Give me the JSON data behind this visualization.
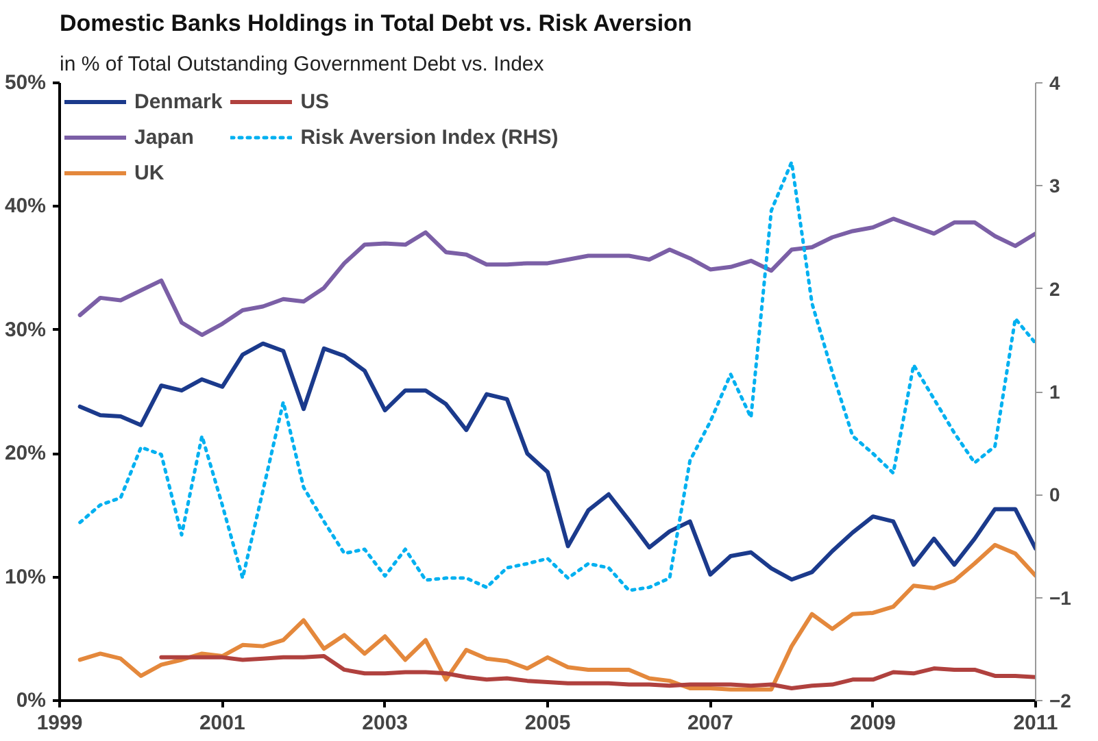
{
  "chart_data": {
    "type": "line",
    "title": "Domestic Banks Holdings in Total Debt vs. Risk Aversion",
    "subtitle": "in % of Total Outstanding Government Debt vs. Index",
    "x": [
      1999.25,
      1999.5,
      1999.75,
      2000.0,
      2000.25,
      2000.5,
      2000.75,
      2001.0,
      2001.25,
      2001.5,
      2001.75,
      2002.0,
      2002.25,
      2002.5,
      2002.75,
      2003.0,
      2003.25,
      2003.5,
      2003.75,
      2004.0,
      2004.25,
      2004.5,
      2004.75,
      2005.0,
      2005.25,
      2005.5,
      2005.75,
      2006.0,
      2006.25,
      2006.5,
      2006.75,
      2007.0,
      2007.25,
      2007.5,
      2007.75,
      2008.0,
      2008.25,
      2008.5,
      2008.75,
      2009.0,
      2009.25,
      2009.5,
      2009.75,
      2010.0,
      2010.25,
      2010.5,
      2010.75,
      2011.0
    ],
    "series": [
      {
        "name": "Denmark",
        "color": "#1b3a8c",
        "values": [
          23.8,
          23.1,
          23.0,
          22.3,
          25.5,
          25.1,
          26.0,
          25.4,
          28.0,
          28.9,
          28.3,
          23.6,
          28.5,
          27.9,
          26.7,
          23.5,
          25.1,
          25.1,
          24.0,
          21.9,
          24.8,
          24.4,
          20.0,
          18.5,
          12.5,
          15.4,
          16.7,
          14.6,
          12.4,
          13.7,
          14.5,
          10.2,
          11.7,
          12.0,
          10.7,
          9.8,
          10.4,
          12.1,
          13.6,
          14.9,
          14.5,
          11.0,
          13.1,
          11.0,
          13.1,
          15.5,
          15.5,
          12.3
        ]
      },
      {
        "name": "Japan",
        "color": "#7b5fa6",
        "values": [
          31.2,
          32.6,
          32.4,
          33.2,
          34.0,
          30.6,
          29.6,
          30.5,
          31.6,
          31.9,
          32.5,
          32.3,
          33.4,
          35.4,
          36.9,
          37.0,
          36.9,
          37.9,
          36.3,
          36.1,
          35.3,
          35.3,
          35.4,
          35.4,
          35.7,
          36.0,
          36.0,
          36.0,
          35.7,
          36.5,
          35.8,
          34.9,
          35.1,
          35.6,
          34.8,
          36.5,
          36.7,
          37.5,
          38.0,
          38.3,
          39.0,
          38.4,
          37.8,
          38.7,
          38.7,
          37.6,
          36.8,
          37.8
        ]
      },
      {
        "name": "UK",
        "color": "#e4883c",
        "values": [
          3.3,
          3.8,
          3.4,
          2.0,
          2.9,
          3.3,
          3.8,
          3.6,
          4.5,
          4.4,
          4.9,
          6.5,
          4.2,
          5.3,
          3.8,
          5.2,
          3.3,
          4.9,
          1.7,
          4.1,
          3.4,
          3.2,
          2.6,
          3.5,
          2.7,
          2.5,
          2.5,
          2.5,
          1.8,
          1.6,
          1.0,
          1.0,
          0.9,
          0.9,
          0.9,
          4.4,
          7.0,
          5.8,
          7.0,
          7.1,
          7.6,
          9.3,
          9.1,
          9.7,
          11.1,
          12.6,
          11.9,
          10.1
        ]
      },
      {
        "name": "US",
        "color": "#b0413e",
        "values": [
          null,
          null,
          null,
          null,
          3.5,
          3.5,
          3.5,
          3.5,
          3.3,
          3.4,
          3.5,
          3.5,
          3.6,
          2.5,
          2.2,
          2.2,
          2.3,
          2.3,
          2.2,
          1.9,
          1.7,
          1.8,
          1.6,
          1.5,
          1.4,
          1.4,
          1.4,
          1.3,
          1.3,
          1.2,
          1.3,
          1.3,
          1.3,
          1.2,
          1.3,
          1.0,
          1.2,
          1.3,
          1.7,
          1.7,
          2.3,
          2.2,
          2.6,
          2.5,
          2.5,
          2.0,
          2.0,
          1.9
        ]
      },
      {
        "name": "Risk Aversion Index (RHS)",
        "color": "#00b0f0",
        "axis": "y2",
        "line_style": "dotted",
        "values": [
          -0.27,
          -0.1,
          -0.03,
          0.46,
          0.39,
          -0.39,
          0.57,
          -0.1,
          -0.81,
          0.04,
          0.9,
          0.07,
          -0.26,
          -0.57,
          -0.53,
          -0.79,
          -0.53,
          -0.83,
          -0.81,
          -0.81,
          -0.9,
          -0.71,
          -0.67,
          -0.62,
          -0.81,
          -0.67,
          -0.71,
          -0.93,
          -0.9,
          -0.81,
          0.33,
          0.71,
          1.17,
          0.75,
          2.76,
          3.23,
          1.86,
          1.19,
          0.57,
          0.4,
          0.21,
          1.26,
          0.93,
          0.6,
          0.31,
          0.47,
          1.71,
          1.47
        ]
      }
    ],
    "xlim": [
      1999,
      2011
    ],
    "xticks": [
      1999,
      2001,
      2003,
      2005,
      2007,
      2009,
      2011
    ],
    "ylim": [
      0,
      50
    ],
    "yticks": [
      {
        "value": 0,
        "label": "0%"
      },
      {
        "value": 10,
        "label": "10%"
      },
      {
        "value": 20,
        "label": "20%"
      },
      {
        "value": 30,
        "label": "30%"
      },
      {
        "value": 40,
        "label": "40%"
      },
      {
        "value": 50,
        "label": "50%"
      }
    ],
    "y2lim": [
      -2,
      4
    ],
    "y2ticks": [
      -2,
      -1,
      0,
      1,
      2,
      3,
      4
    ],
    "grid": false,
    "legend": "top left",
    "line_style": "solid",
    "marker": "none"
  }
}
